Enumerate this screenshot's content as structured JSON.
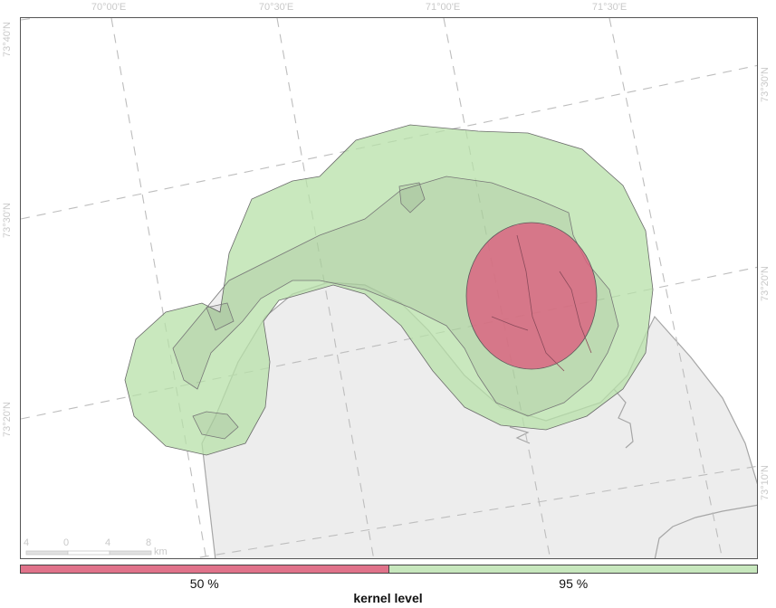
{
  "map": {
    "longitude_ticks": [
      "70°00'E",
      "70°30'E",
      "71°00'E",
      "71°30'E"
    ],
    "latitude_ticks_left": [
      "73°40'N",
      "73°30'N",
      "73°20'N"
    ],
    "latitude_ticks_right": [
      "73°30'N",
      "73°20'N",
      "73°10'N"
    ],
    "scalebar": {
      "labels": [
        "4",
        "0",
        "4",
        "8"
      ],
      "unit": "km"
    }
  },
  "legend": {
    "title": "kernel level",
    "items": [
      {
        "label": "50 %",
        "color": "#e0728a"
      },
      {
        "label": "95 %",
        "color": "#c7e7bd"
      }
    ]
  },
  "colors": {
    "land": "#ededed",
    "coast": "#a6a6a6",
    "kernel95": "#b7e0a8",
    "kernel50": "#dc5e7e",
    "grid": "#bdbdbd"
  }
}
